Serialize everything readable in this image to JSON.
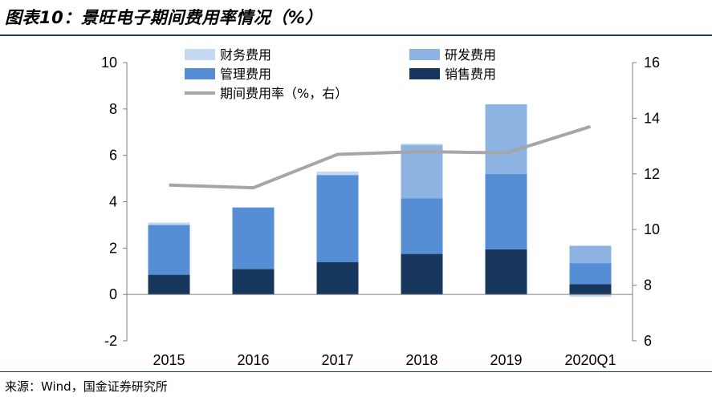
{
  "figure": {
    "title": "图表10：景旺电子期间费用率情况（%）",
    "source": "来源：Wind，国金证券研究所"
  },
  "colors": {
    "finance": "#c5d9f1",
    "rnd": "#8db3e2",
    "admin": "#558ed5",
    "sales": "#17375e",
    "ratio": "#a6a6a6",
    "rule": "#1f3864"
  },
  "chart_data": {
    "type": "bar",
    "stacked": true,
    "categories": [
      "2015",
      "2016",
      "2017",
      "2018",
      "2019",
      "2020Q1"
    ],
    "series": [
      {
        "key": "sales",
        "name": "销售费用",
        "axis": "left",
        "values": [
          0.85,
          1.1,
          1.4,
          1.75,
          1.95,
          0.45
        ]
      },
      {
        "key": "admin",
        "name": "管理费用",
        "axis": "left",
        "values": [
          2.15,
          2.65,
          3.75,
          2.4,
          3.25,
          0.9
        ]
      },
      {
        "key": "rnd",
        "name": "研发费用",
        "axis": "left",
        "values": [
          0,
          0,
          0,
          2.3,
          3.0,
          0.75
        ]
      },
      {
        "key": "finance",
        "name": "财务费用",
        "axis": "left",
        "values": [
          0.1,
          0.0,
          0.15,
          0.05,
          0.0,
          -0.1
        ]
      },
      {
        "key": "ratio",
        "name": "期间费用率（%，右）",
        "axis": "right",
        "type": "line",
        "values": [
          11.6,
          11.5,
          12.7,
          12.8,
          12.75,
          13.7
        ]
      }
    ],
    "legend_order": [
      "finance",
      "rnd",
      "admin",
      "sales",
      "ratio"
    ],
    "y_left": {
      "min": -2,
      "max": 10,
      "ticks": [
        -2,
        0,
        2,
        4,
        6,
        8,
        10
      ]
    },
    "y_right": {
      "min": 6,
      "max": 16,
      "ticks": [
        6,
        8,
        10,
        12,
        14,
        16
      ]
    },
    "grid": false,
    "legend_position": "top"
  }
}
